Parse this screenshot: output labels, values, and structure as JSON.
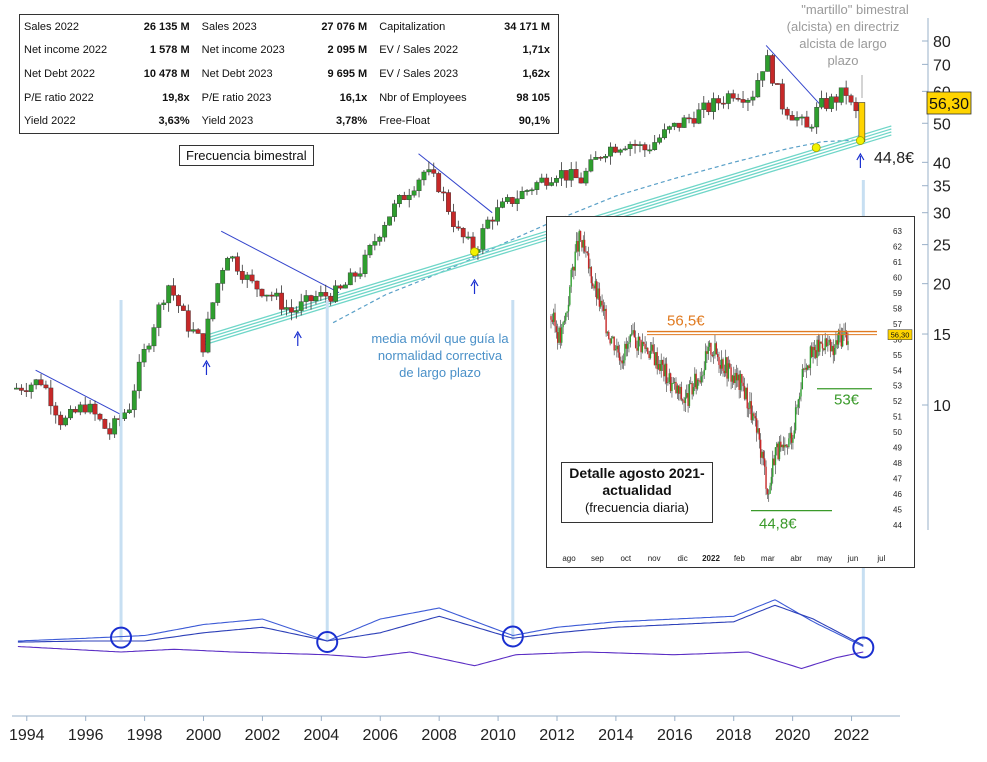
{
  "stats": {
    "rows": [
      [
        {
          "label": "Sales 2022",
          "value": "26 135 M"
        },
        {
          "label": "Sales 2023",
          "value": "27 076 M"
        },
        {
          "label": "Capitalization",
          "value": "34 171 M"
        }
      ],
      [
        {
          "label": "Net income 2022",
          "value": "1 578 M"
        },
        {
          "label": "Net income 2023",
          "value": "2 095 M"
        },
        {
          "label": "EV / Sales 2022",
          "value": "1,71x"
        }
      ],
      [
        {
          "label": "Net Debt 2022",
          "value": "10 478 M"
        },
        {
          "label": "Net Debt 2023",
          "value": "9 695 M"
        },
        {
          "label": "EV / Sales 2023",
          "value": "1,62x"
        }
      ],
      [
        {
          "label": "P/E ratio 2022",
          "value": "19,8x"
        },
        {
          "label": "P/E ratio 2023",
          "value": "16,1x"
        },
        {
          "label": "Nbr of Employees",
          "value": "98 105"
        }
      ],
      [
        {
          "label": "Yield 2022",
          "value": "3,63%"
        },
        {
          "label": "Yield 2023",
          "value": "3,78%"
        },
        {
          "label": "Free-Float",
          "value": "90,1%"
        }
      ]
    ]
  },
  "frequency_label": "Frecuencia bimestral",
  "annotations": {
    "hammer_bold": "\"martillo\"",
    "hammer_lines": [
      "\"martillo\" bimestral",
      "(alcista) en directriz",
      "alcista de largo",
      "plazo"
    ],
    "ma_note_lines": [
      "media móvil que guía la",
      "normalidad correctiva",
      "de largo plazo"
    ],
    "support_price": "44,8€",
    "last_price": "56,30"
  },
  "inset": {
    "title_lines": [
      "Detalle agosto 2021-",
      "actualidad"
    ],
    "subtitle": "(frecuencia diaria)",
    "resistance_label": "56,5€",
    "support1_label": "53€",
    "support2_label": "44,8€",
    "last_price": "56,30",
    "y_ticks": [
      "63",
      "62",
      "61",
      "60",
      "59",
      "58",
      "57",
      "56",
      "55",
      "54",
      "53",
      "52",
      "51",
      "50",
      "49",
      "48",
      "47",
      "46",
      "45",
      "44"
    ],
    "x_ticks": [
      "ago",
      "sep",
      "oct",
      "nov",
      "dic",
      "2022",
      "feb",
      "mar",
      "abr",
      "may",
      "jun",
      "jul"
    ]
  },
  "chart_data": [
    {
      "type": "candlestick",
      "frequency": "bimonthly",
      "y_scale": "log",
      "ylim": [
        7,
        95
      ],
      "xlim": [
        1993.6,
        2023.0
      ],
      "x_ticks": [
        "1994",
        "1996",
        "1998",
        "2000",
        "2002",
        "2004",
        "2006",
        "2008",
        "2010",
        "2012",
        "2014",
        "2016",
        "2018",
        "2020",
        "2022"
      ],
      "y_ticks": [
        "80",
        "70",
        "60",
        "50",
        "40",
        "35",
        "30",
        "25",
        "20",
        "15",
        "10"
      ],
      "last_price": 56.3,
      "support_level": 44.8,
      "price_path": [
        [
          1993.6,
          11
        ],
        [
          1994.5,
          11.5
        ],
        [
          1995.2,
          9
        ],
        [
          1996.0,
          10
        ],
        [
          1996.8,
          8.5
        ],
        [
          1997.5,
          10
        ],
        [
          1998.2,
          15
        ],
        [
          1998.8,
          20
        ],
        [
          1999.4,
          16
        ],
        [
          2000.0,
          14
        ],
        [
          2000.8,
          24
        ],
        [
          2001.6,
          20
        ],
        [
          2002.2,
          19
        ],
        [
          2003.0,
          17
        ],
        [
          2003.8,
          18.5
        ],
        [
          2004.6,
          19
        ],
        [
          2005.4,
          22
        ],
        [
          2006.2,
          29
        ],
        [
          2006.8,
          33
        ],
        [
          2007.5,
          38
        ],
        [
          2008.0,
          35
        ],
        [
          2008.6,
          27
        ],
        [
          2009.2,
          24
        ],
        [
          2009.7,
          29
        ],
        [
          2010.4,
          32
        ],
        [
          2011.2,
          35
        ],
        [
          2012.0,
          38
        ],
        [
          2012.8,
          36
        ],
        [
          2013.6,
          43
        ],
        [
          2014.4,
          45
        ],
        [
          2015.0,
          43
        ],
        [
          2015.8,
          48
        ],
        [
          2016.6,
          52
        ],
        [
          2017.4,
          56
        ],
        [
          2018.0,
          60
        ],
        [
          2018.6,
          58
        ],
        [
          2019.1,
          73
        ],
        [
          2019.6,
          56
        ],
        [
          2020.2,
          51
        ],
        [
          2020.5,
          48
        ],
        [
          2020.9,
          55
        ],
        [
          2021.4,
          57
        ],
        [
          2021.8,
          60
        ],
        [
          2022.1,
          52
        ],
        [
          2022.4,
          56.3
        ]
      ],
      "moving_average_path": [
        [
          2004.4,
          16
        ],
        [
          2005.2,
          17.2
        ],
        [
          2006.2,
          18.8
        ],
        [
          2007.5,
          20.5
        ],
        [
          2008.8,
          22.5
        ],
        [
          2010.2,
          25.2
        ],
        [
          2012.0,
          28.8
        ],
        [
          2014.0,
          33
        ],
        [
          2016.0,
          36.5
        ],
        [
          2018.0,
          40
        ],
        [
          2019.8,
          43.2
        ],
        [
          2021.0,
          45
        ],
        [
          2022.4,
          45.5
        ]
      ],
      "trendline_uptrend": [
        [
          2000.0,
          14.5
        ],
        [
          2022.4,
          46.5
        ]
      ],
      "trendlines_down": [
        [
          [
            1994.3,
            12.2
          ],
          [
            1997.4,
            9.3
          ]
        ],
        [
          [
            2000.6,
            27
          ],
          [
            2004.6,
            19
          ]
        ],
        [
          [
            2007.3,
            42
          ],
          [
            2009.8,
            30
          ]
        ],
        [
          [
            2019.1,
            78
          ],
          [
            2020.9,
            56
          ]
        ]
      ],
      "arrow_markers": [
        2000.1,
        2003.2,
        2009.2,
        2022.3
      ]
    },
    {
      "type": "line",
      "description_series": "oscillator",
      "series": [
        {
          "name": "",
          "values": [
            [
              1993.7,
              0.2
            ],
            [
              1996,
              0.25
            ],
            [
              1998,
              0.3
            ],
            [
              2000,
              0.5
            ],
            [
              2002,
              0.6
            ],
            [
              2004.2,
              0.2
            ],
            [
              2006,
              0.6
            ],
            [
              2008,
              0.8
            ],
            [
              2010.5,
              0.3
            ],
            [
              2012,
              0.45
            ],
            [
              2014,
              0.55
            ],
            [
              2016,
              0.6
            ],
            [
              2018,
              0.65
            ],
            [
              2019.4,
              0.95
            ],
            [
              2020.7,
              0.55
            ],
            [
              2022.4,
              0.1
            ]
          ]
        },
        {
          "name": "",
          "values": [
            [
              1993.7,
              0.18
            ],
            [
              1996,
              0.2
            ],
            [
              1998,
              0.2
            ],
            [
              2000,
              0.35
            ],
            [
              2002,
              0.45
            ],
            [
              2004.2,
              0.2
            ],
            [
              2006,
              0.35
            ],
            [
              2008,
              0.65
            ],
            [
              2010.5,
              0.25
            ],
            [
              2012,
              0.35
            ],
            [
              2014,
              0.45
            ],
            [
              2016,
              0.5
            ],
            [
              2018,
              0.55
            ],
            [
              2019.4,
              0.85
            ],
            [
              2020.7,
              0.6
            ],
            [
              2022.4,
              0.12
            ]
          ]
        },
        {
          "name": "",
          "values": [
            [
              1993.7,
              0.1
            ],
            [
              1997.2,
              0.0
            ],
            [
              1999,
              0.05
            ],
            [
              2001,
              0.0
            ],
            [
              2004.2,
              -0.05
            ],
            [
              2005.5,
              -0.1
            ],
            [
              2007,
              0.0
            ],
            [
              2009.2,
              -0.25
            ],
            [
              2010.6,
              -0.05
            ],
            [
              2013,
              0.0
            ],
            [
              2016,
              -0.05
            ],
            [
              2018.5,
              0.0
            ],
            [
              2020.3,
              -0.3
            ],
            [
              2021.5,
              -0.1
            ],
            [
              2022.4,
              0.0
            ]
          ]
        }
      ],
      "circle_markers": [
        1997.2,
        2004.2,
        2010.5,
        2022.4
      ]
    },
    {
      "type": "candlestick",
      "frequency": "daily",
      "ylim": [
        44,
        63
      ],
      "resistance": 56.5,
      "support_levels": [
        53,
        44.8
      ],
      "price_path": [
        [
          0.0,
          57.5
        ],
        [
          0.03,
          56.0
        ],
        [
          0.05,
          58.0
        ],
        [
          0.07,
          61.0
        ],
        [
          0.09,
          62.5
        ],
        [
          0.12,
          60.5
        ],
        [
          0.15,
          58.5
        ],
        [
          0.18,
          56.5
        ],
        [
          0.22,
          55.0
        ],
        [
          0.26,
          56.0
        ],
        [
          0.3,
          55.5
        ],
        [
          0.34,
          54.5
        ],
        [
          0.38,
          53.0
        ],
        [
          0.42,
          52.0
        ],
        [
          0.46,
          53.5
        ],
        [
          0.5,
          55.5
        ],
        [
          0.54,
          54.5
        ],
        [
          0.57,
          53.5
        ],
        [
          0.6,
          53.0
        ],
        [
          0.63,
          51.0
        ],
        [
          0.66,
          48.5
        ],
        [
          0.68,
          46.0
        ],
        [
          0.7,
          49.0
        ],
        [
          0.73,
          48.5
        ],
        [
          0.76,
          50.5
        ],
        [
          0.79,
          54.5
        ],
        [
          0.82,
          55.0
        ],
        [
          0.85,
          56.0
        ],
        [
          0.88,
          55.0
        ],
        [
          0.9,
          56.2
        ],
        [
          0.93,
          56.3
        ]
      ]
    }
  ]
}
